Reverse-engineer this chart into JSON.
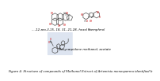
{
  "background_color": "#ffffff",
  "figure_title": "Figure 4: Structure of compounds of Methanol Extract of Artemisia monosperma identified b",
  "title_fontsize": 2.8,
  "compound1_label": "...-12-aro-3,15, 18, 31, 21,28- hexol",
  "compound2_label": "Kaempferol",
  "compound3_label": "Dasycarpidone methanol, acetate",
  "label_fontsize": 2.8,
  "struct_color": "#555555",
  "red_color": "#cc0000",
  "bg_box_color": "#dde4f0"
}
